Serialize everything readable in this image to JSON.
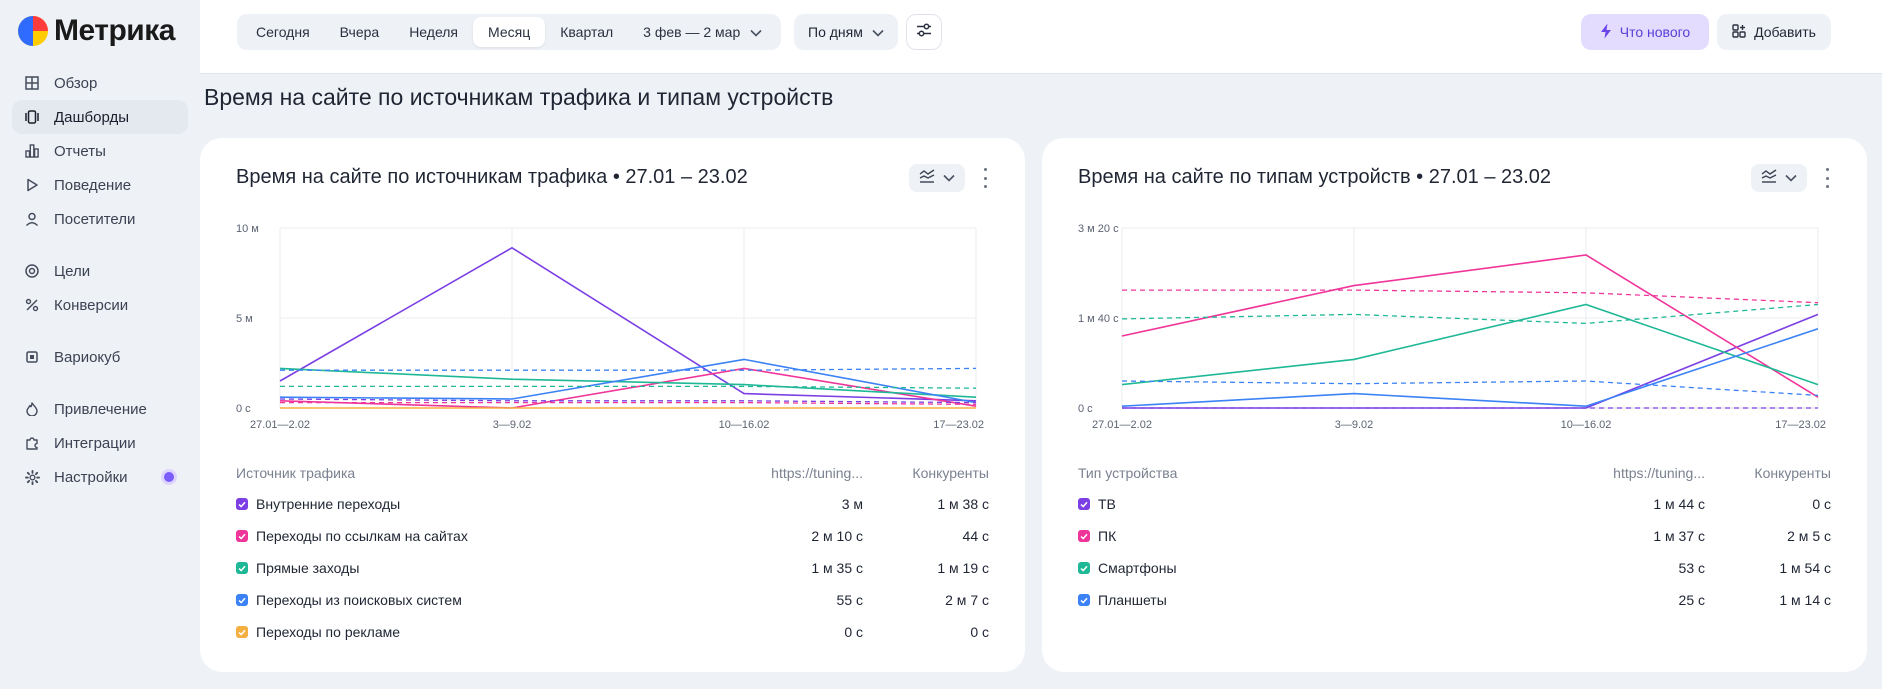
{
  "app": {
    "logo_text": "Метрика"
  },
  "sidebar": {
    "items": [
      {
        "label": "Обзор",
        "icon": "grid-icon"
      },
      {
        "label": "Дашборды",
        "icon": "dashboards-icon",
        "active": true
      },
      {
        "label": "Отчеты",
        "icon": "bar-chart-icon"
      },
      {
        "label": "Поведение",
        "icon": "play-icon"
      },
      {
        "label": "Посетители",
        "icon": "person-icon"
      },
      {
        "label": "Цели",
        "icon": "target-icon"
      },
      {
        "label": "Конверсии",
        "icon": "percent-icon"
      },
      {
        "label": "Вариокуб",
        "icon": "cube-icon"
      },
      {
        "label": "Привлечение",
        "icon": "flame-icon"
      },
      {
        "label": "Интеграции",
        "icon": "puzzle-icon"
      },
      {
        "label": "Настройки",
        "icon": "gear-icon"
      }
    ]
  },
  "header": {
    "periods": [
      "Сегодня",
      "Вчера",
      "Неделя",
      "Месяц",
      "Квартал"
    ],
    "active_period": "Месяц",
    "date_range": "3 фев — 2 мар",
    "grouping": "По дням",
    "whats_new": "Что нового",
    "add": "Добавить"
  },
  "page": {
    "title": "Время на сайте по источникам трафика и типам устройств"
  },
  "colors": {
    "purple": "#7b3fe4",
    "pink": "#f0359a",
    "teal": "#1fb896",
    "blue": "#3b82f6",
    "orange": "#f5b041"
  },
  "cards": [
    {
      "title": "Время на сайте по источникам трафика • 27.01 – 23.02",
      "table": {
        "col_name": "Источник трафика",
        "col_a": "https://tuning...",
        "col_b": "Конкуренты",
        "rows": [
          {
            "name": "Внутренние переходы",
            "a": "3 м",
            "b": "1 м 38 с",
            "color": "#7b3fe4"
          },
          {
            "name": "Переходы по ссылкам на сайтах",
            "a": "2 м 10 с",
            "b": "44 с",
            "color": "#f0359a"
          },
          {
            "name": "Прямые заходы",
            "a": "1 м 35 с",
            "b": "1 м 19 с",
            "color": "#1fb896"
          },
          {
            "name": "Переходы из поисковых систем",
            "a": "55 с",
            "b": "2 м 7 с",
            "color": "#3b82f6"
          },
          {
            "name": "Переходы по рекламе",
            "a": "0 с",
            "b": "0 с",
            "color": "#f5b041"
          }
        ]
      }
    },
    {
      "title": "Время на сайте по типам устройств • 27.01 – 23.02",
      "table": {
        "col_name": "Тип устройства",
        "col_a": "https://tuning...",
        "col_b": "Конкуренты",
        "rows": [
          {
            "name": "ТВ",
            "a": "1 м 44 с",
            "b": "0 с",
            "color": "#7b3fe4"
          },
          {
            "name": "ПК",
            "a": "1 м 37 с",
            "b": "2 м 5 с",
            "color": "#f0359a"
          },
          {
            "name": "Смартфоны",
            "a": "53 с",
            "b": "1 м 54 с",
            "color": "#1fb896"
          },
          {
            "name": "Планшеты",
            "a": "25 с",
            "b": "1 м 14 с",
            "color": "#3b82f6"
          }
        ]
      }
    }
  ],
  "chart_data": [
    {
      "type": "line",
      "x": [
        "27.01—2.02",
        "3—9.02",
        "10—16.02",
        "17—23.02"
      ],
      "yticks": [
        "0 с",
        "5 м",
        "10 м"
      ],
      "ylim": [
        0,
        600
      ],
      "grid": true,
      "series": [
        {
          "name": "Внутренние переходы",
          "color": "#7b3fe4",
          "values": [
            90,
            534,
            48,
            24
          ]
        },
        {
          "name": "Переходы по ссылкам на сайтах",
          "color": "#f0359a",
          "values": [
            24,
            0,
            132,
            6
          ]
        },
        {
          "name": "Прямые заходы",
          "color": "#1fb896",
          "values": [
            132,
            96,
            78,
            36
          ]
        },
        {
          "name": "Переходы из поисковых систем",
          "color": "#3b82f6",
          "values": [
            36,
            30,
            162,
            18
          ]
        },
        {
          "name": "Переходы по рекламе",
          "color": "#f5b041",
          "values": [
            0,
            0,
            0,
            0
          ]
        },
        {
          "name": "Внутренние переходы (конкуренты)",
          "color": "#7b3fe4",
          "dashed": true,
          "values": [
            30,
            24,
            24,
            18
          ]
        },
        {
          "name": "Переходы по ссылкам на сайтах (конкуренты)",
          "color": "#f0359a",
          "dashed": true,
          "values": [
            18,
            18,
            18,
            12
          ]
        },
        {
          "name": "Прямые заходы (конкуренты)",
          "color": "#1fb896",
          "dashed": true,
          "values": [
            72,
            72,
            72,
            66
          ]
        },
        {
          "name": "Переходы из поисковых систем (конкуренты)",
          "color": "#3b82f6",
          "dashed": true,
          "values": [
            126,
            126,
            126,
            132
          ]
        }
      ]
    },
    {
      "type": "line",
      "x": [
        "27.01—2.02",
        "3—9.02",
        "10—16.02",
        "17—23.02"
      ],
      "yticks": [
        "0 с",
        "1 м 40 с",
        "3 м 20 с"
      ],
      "ylim": [
        0,
        200
      ],
      "grid": true,
      "series": [
        {
          "name": "ТВ",
          "color": "#7b3fe4",
          "values": [
            0,
            0,
            0,
            104
          ]
        },
        {
          "name": "ПК",
          "color": "#f0359a",
          "values": [
            80,
            136,
            170,
            12
          ]
        },
        {
          "name": "Смартфоны",
          "color": "#1fb896",
          "values": [
            26,
            54,
            115,
            26
          ]
        },
        {
          "name": "Планшеты",
          "color": "#3b82f6",
          "values": [
            2,
            16,
            2,
            88
          ]
        },
        {
          "name": "ТВ (конкуренты)",
          "color": "#7b3fe4",
          "dashed": true,
          "values": [
            0,
            0,
            0,
            0
          ]
        },
        {
          "name": "ПК (конкуренты)",
          "color": "#f0359a",
          "dashed": true,
          "values": [
            131,
            131,
            128,
            117
          ]
        },
        {
          "name": "Смартфоны (конкуренты)",
          "color": "#1fb896",
          "dashed": true,
          "values": [
            99,
            104,
            94,
            115
          ]
        },
        {
          "name": "Планшеты (конкуренты)",
          "color": "#3b82f6",
          "dashed": true,
          "values": [
            30,
            27,
            30,
            14
          ]
        }
      ]
    }
  ]
}
